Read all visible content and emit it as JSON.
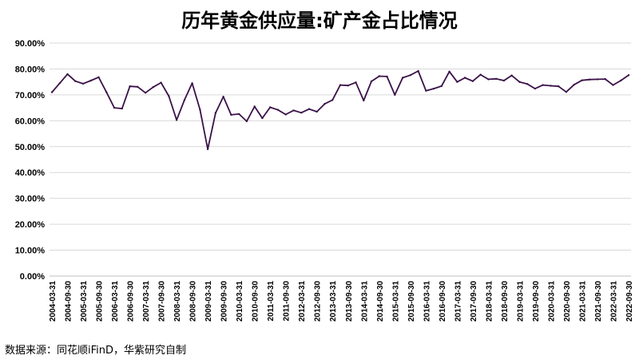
{
  "chart_data": {
    "type": "line",
    "title": "历年黄金供应量:矿产金占比情况",
    "source": "数据来源：同花顺iFinD，华紫研究自制",
    "xlabel": "",
    "ylabel": "",
    "ylim": [
      0,
      90
    ],
    "yticks": [
      "0.00%",
      "10.00%",
      "20.00%",
      "30.00%",
      "40.00%",
      "50.00%",
      "60.00%",
      "70.00%",
      "80.00%",
      "90.00%"
    ],
    "grid": true,
    "legend": "none",
    "line_color": "#3a1248",
    "x": [
      "2004-03-31",
      "2004-06-30",
      "2004-09-30",
      "2004-12-31",
      "2005-03-31",
      "2005-06-30",
      "2005-09-30",
      "2005-12-31",
      "2006-03-31",
      "2006-06-30",
      "2006-09-30",
      "2006-12-31",
      "2007-03-31",
      "2007-06-30",
      "2007-09-30",
      "2007-12-31",
      "2008-03-31",
      "2008-06-30",
      "2008-09-30",
      "2008-12-31",
      "2009-03-31",
      "2009-06-30",
      "2009-09-30",
      "2009-12-31",
      "2010-03-31",
      "2010-06-30",
      "2010-09-30",
      "2010-12-31",
      "2011-03-31",
      "2011-06-30",
      "2011-09-30",
      "2011-12-31",
      "2012-03-31",
      "2012-06-30",
      "2012-09-30",
      "2012-12-31",
      "2013-03-31",
      "2013-06-30",
      "2013-09-30",
      "2013-12-31",
      "2014-03-31",
      "2014-06-30",
      "2014-09-30",
      "2014-12-31",
      "2015-03-31",
      "2015-06-30",
      "2015-09-30",
      "2015-12-31",
      "2016-03-31",
      "2016-06-30",
      "2016-09-30",
      "2016-12-31",
      "2017-03-31",
      "2017-06-30",
      "2017-09-30",
      "2017-12-31",
      "2018-03-31",
      "2018-06-30",
      "2018-09-30",
      "2018-12-31",
      "2019-03-31",
      "2019-06-30",
      "2019-09-30",
      "2019-12-31",
      "2020-03-31",
      "2020-06-30",
      "2020-09-30",
      "2020-12-31",
      "2021-03-31",
      "2021-06-30",
      "2021-09-30",
      "2021-12-31",
      "2022-03-31",
      "2022-06-30",
      "2022-09-30"
    ],
    "xtick_labels": [
      "2004-03-31",
      "2004-09-30",
      "2005-03-31",
      "2005-09-30",
      "2006-03-31",
      "2006-09-30",
      "2007-03-31",
      "2007-09-30",
      "2008-03-31",
      "2008-09-30",
      "2009-03-31",
      "2009-09-30",
      "2010-03-31",
      "2010-09-30",
      "2011-03-31",
      "2011-09-30",
      "2012-03-31",
      "2012-09-30",
      "2013-03-31",
      "2013-09-30",
      "2014-03-31",
      "2014-09-30",
      "2015-03-31",
      "2015-09-30",
      "2016-03-31",
      "2016-09-30",
      "2017-03-31",
      "2017-09-30",
      "2018-03-31",
      "2018-09-30",
      "2019-03-31",
      "2019-09-30",
      "2020-03-31",
      "2020-09-30",
      "2021-03-31",
      "2021-09-30",
      "2022-03-31",
      "2022-09-30"
    ],
    "values": [
      71.0,
      74.5,
      78.0,
      75.3,
      74.3,
      75.5,
      76.8,
      71.0,
      65.0,
      64.7,
      73.3,
      73.1,
      70.8,
      73.0,
      74.7,
      69.5,
      60.3,
      68.0,
      74.5,
      64.3,
      49.0,
      63.0,
      69.3,
      62.3,
      62.6,
      59.8,
      65.5,
      61.0,
      65.2,
      64.2,
      62.4,
      64.0,
      63.1,
      64.5,
      63.5,
      66.5,
      68.0,
      73.8,
      73.6,
      74.8,
      67.8,
      75.2,
      77.2,
      77.1,
      70.0,
      76.6,
      77.6,
      79.2,
      71.6,
      72.4,
      73.4,
      79.0,
      75.0,
      76.6,
      75.3,
      77.8,
      76.0,
      76.2,
      75.5,
      77.5,
      75.0,
      74.2,
      72.4,
      73.8,
      73.5,
      73.3,
      71.1,
      73.9,
      75.6,
      75.9,
      76.0,
      76.1,
      73.8,
      75.5,
      77.6
    ]
  }
}
